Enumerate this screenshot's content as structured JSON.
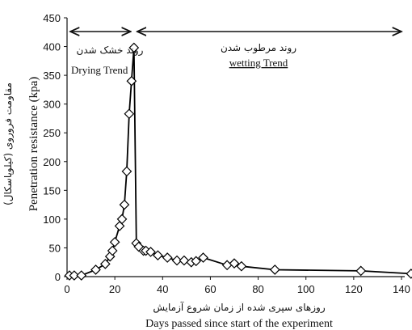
{
  "chart_data": {
    "type": "scatter",
    "xlabel_fa": "روزهای سپری شده از زمان شروع آزمایش",
    "xlabel": "Days passed since start of the experiment",
    "ylabel_fa": "مقاومت فروروی (کیلوپاسکال)",
    "ylabel": "Penetration resistance (kpa)",
    "xlim": [
      0,
      140
    ],
    "ylim": [
      0,
      450
    ],
    "xticks": [
      0,
      20,
      40,
      60,
      80,
      100,
      120,
      140
    ],
    "yticks": [
      0,
      50,
      100,
      150,
      200,
      250,
      300,
      350,
      400,
      450
    ],
    "grid": false,
    "line_color": "#000000",
    "marker": "diamond",
    "annotations": {
      "drying_fa": "روند خشک شدن",
      "drying_en": "Drying Trend",
      "wetting_fa": "روند مرطوب شدن",
      "wetting_en": "wetting Trend",
      "split_x": 28
    },
    "series": [
      {
        "x": [
          1,
          3,
          6,
          12,
          16,
          18,
          19,
          20,
          22,
          23,
          24,
          25,
          26,
          27,
          28,
          29,
          30,
          32,
          33,
          35,
          38,
          42,
          46,
          49,
          52,
          54,
          57,
          67,
          70,
          73,
          87,
          123,
          144
        ],
        "y": [
          2,
          2,
          2,
          12,
          22,
          35,
          45,
          60,
          88,
          100,
          125,
          183,
          283,
          340,
          398,
          58,
          52,
          45,
          45,
          43,
          37,
          33,
          28,
          28,
          25,
          27,
          33,
          20,
          23,
          18,
          12,
          10,
          5
        ]
      }
    ]
  }
}
